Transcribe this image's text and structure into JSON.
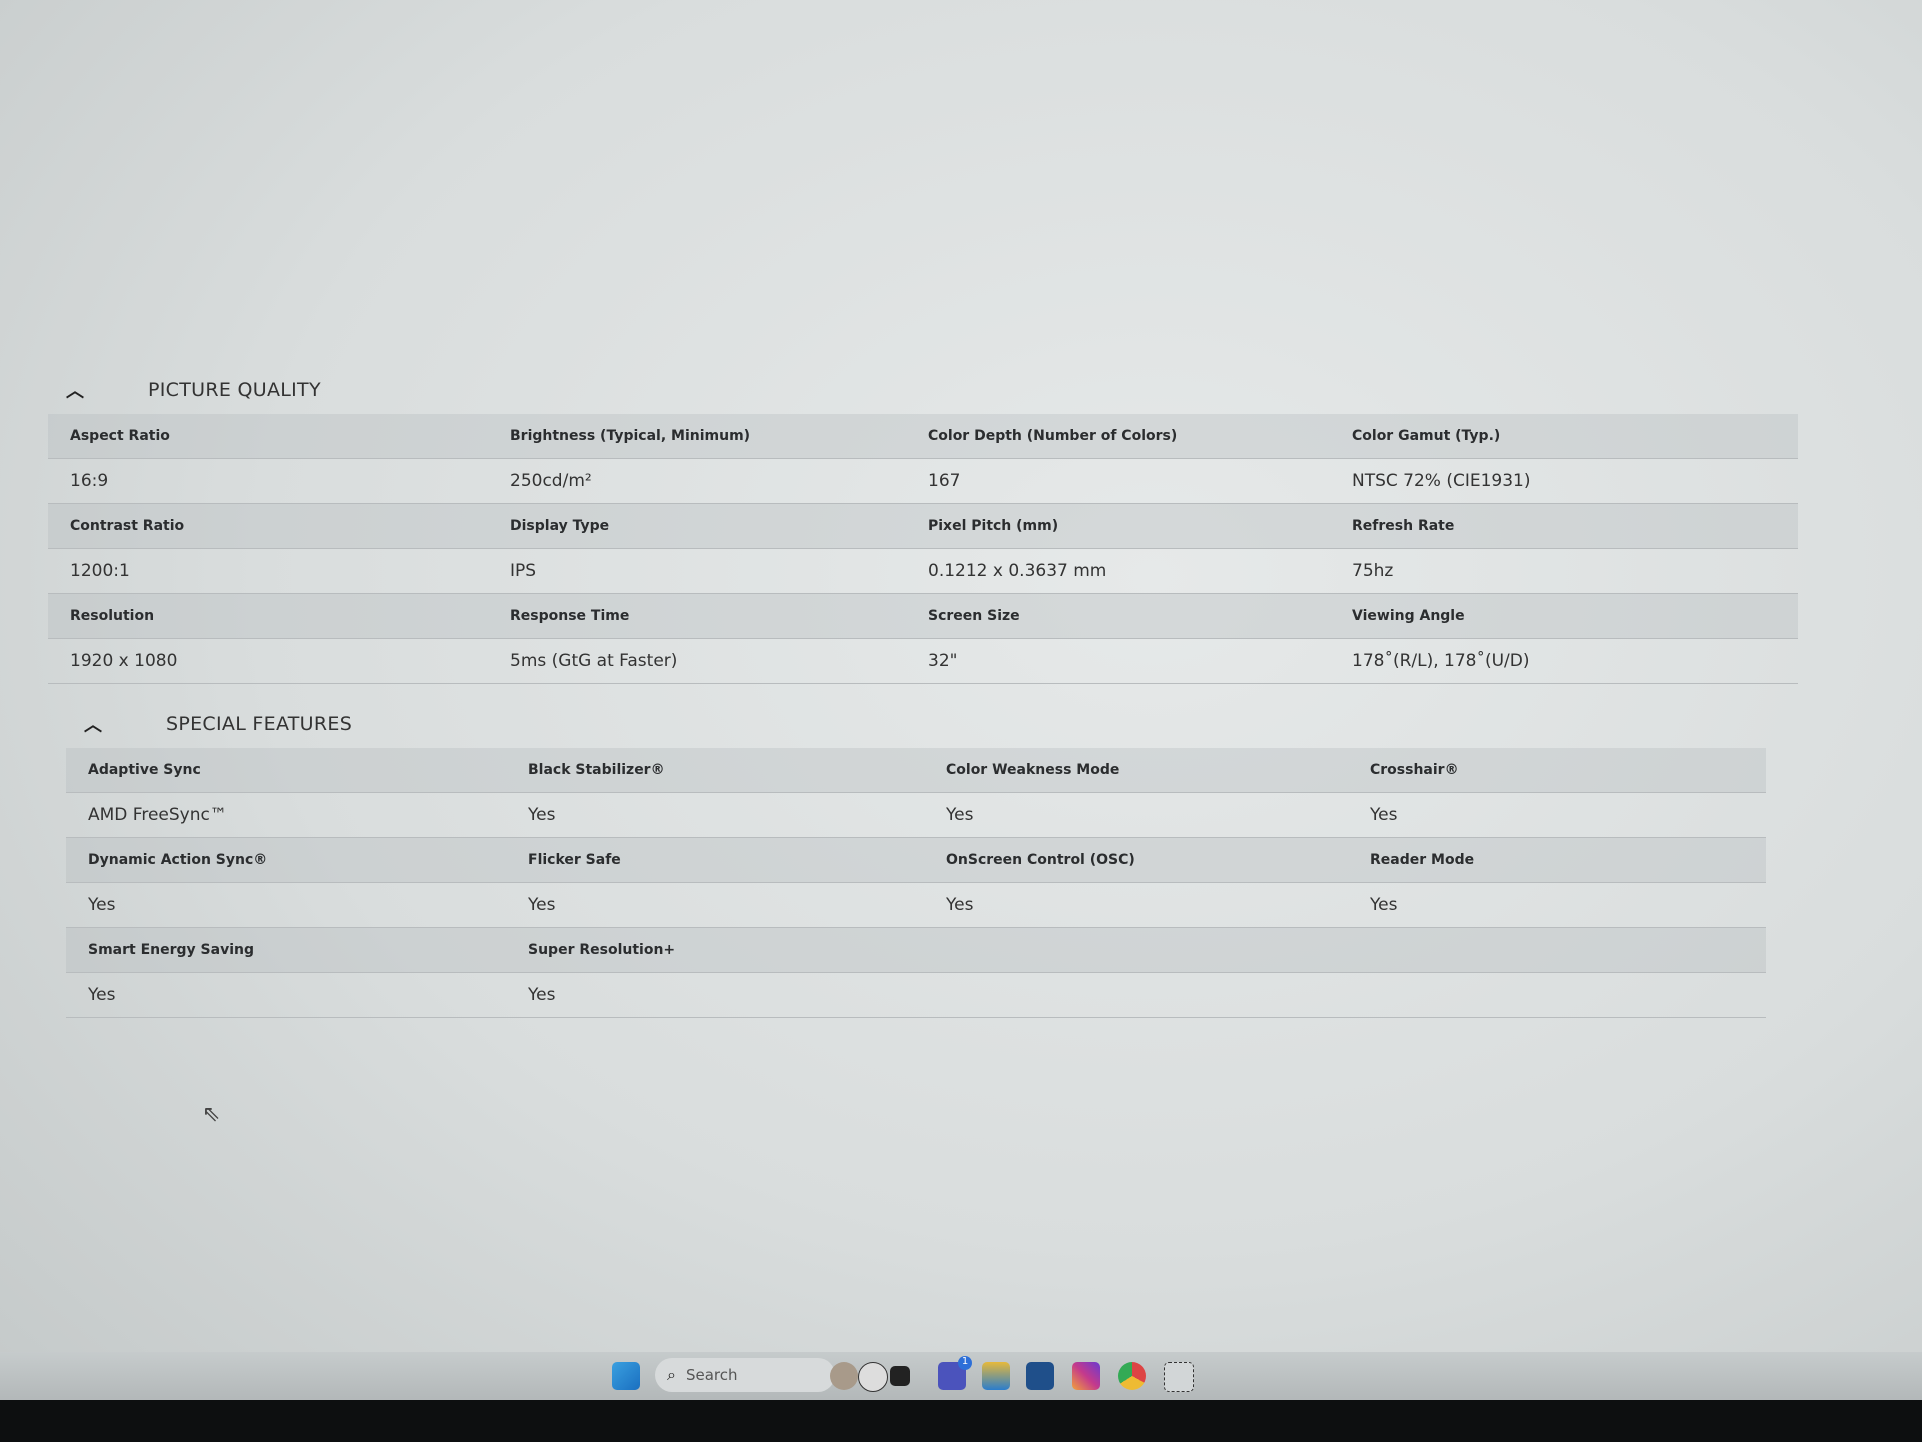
{
  "picture_quality": {
    "title": "PICTURE QUALITY",
    "rows": [
      {
        "labels": [
          "Aspect Ratio",
          "Brightness (Typical, Minimum)",
          "Color Depth (Number of Colors)",
          "Color Gamut (Typ.)"
        ],
        "values": [
          "16:9",
          "250cd/m²",
          "167",
          "NTSC 72% (CIE1931)"
        ]
      },
      {
        "labels": [
          "Contrast Ratio",
          "Display Type",
          "Pixel Pitch (mm)",
          "Refresh Rate"
        ],
        "values": [
          "1200:1",
          "IPS",
          "0.1212 x 0.3637 mm",
          "75hz"
        ]
      },
      {
        "labels": [
          "Resolution",
          "Response Time",
          "Screen Size",
          "Viewing Angle"
        ],
        "values": [
          "1920 x 1080",
          "5ms (GtG at Faster)",
          "32\"",
          "178˚(R/L), 178˚(U/D)"
        ]
      }
    ]
  },
  "special_features": {
    "title": "SPECIAL FEATURES",
    "rows": [
      {
        "labels": [
          "Adaptive Sync",
          "Black Stabilizer®",
          "Color Weakness Mode",
          "Crosshair®"
        ],
        "values": [
          "AMD FreeSync™",
          "Yes",
          "Yes",
          "Yes"
        ]
      },
      {
        "labels": [
          "Dynamic Action Sync®",
          "Flicker Safe",
          "OnScreen Control (OSC)",
          "Reader Mode"
        ],
        "values": [
          "Yes",
          "Yes",
          "Yes",
          "Yes"
        ]
      },
      {
        "labels": [
          "Smart Energy Saving",
          "Super Resolution+",
          "",
          ""
        ],
        "values": [
          "Yes",
          "Yes",
          "",
          ""
        ]
      }
    ]
  },
  "taskbar": {
    "search_label": "Search",
    "icons": [
      "windows-start-icon",
      "search-icon",
      "profile-photo-icon",
      "app-icon",
      "task-view-icon",
      "teams-icon",
      "file-explorer-icon",
      "microsoft-store-icon",
      "instagram-icon",
      "chrome-icon",
      "snipping-tool-icon"
    ],
    "teams_badge": "1"
  }
}
